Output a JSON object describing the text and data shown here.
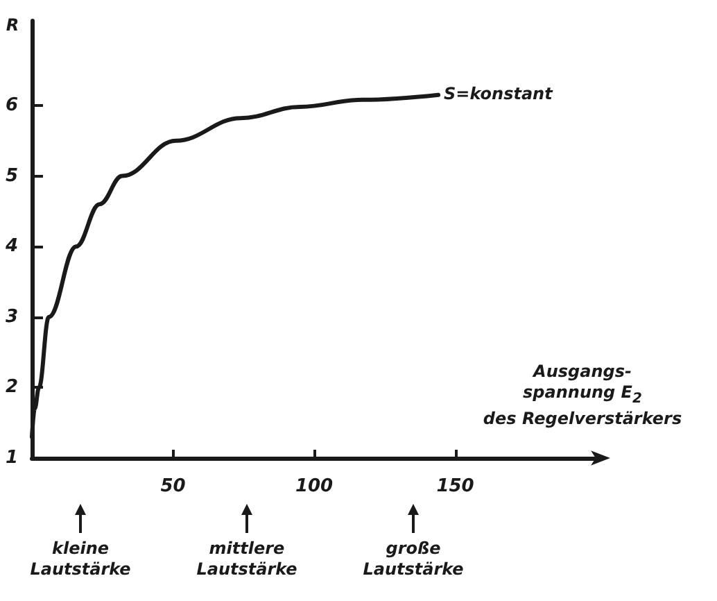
{
  "chart_data": {
    "type": "line",
    "xlabel": "Ausgangs-\nspannung E$_{2}$\ndes Regelverstärkers",
    "ylabel": "R",
    "series": [
      {
        "color": "#1a1a1a",
        "x": [
          0,
          1,
          2.5,
          6,
          15.7,
          24,
          32,
          51,
          74,
          95,
          117,
          144
        ],
        "values": [
          1.3,
          1.7,
          2,
          3,
          4,
          4.6,
          5,
          5.5,
          5.82,
          5.98,
          6.08,
          6.15
        ]
      }
    ],
    "xlim": [
      0,
      200
    ],
    "xticks": [
      50,
      100,
      150
    ],
    "ylim": [
      1,
      7.2
    ],
    "yticks": [
      1,
      2,
      3,
      4,
      5,
      6
    ],
    "annotations": [
      {
        "text": "S=konstant",
        "x": 144,
        "y": 6.15
      },
      "kleine\nLautstärke",
      "mittlere\nLautstärke",
      "große\nLautstärke"
    ],
    "grid": false,
    "marker": "none",
    "line_style": "solid"
  }
}
